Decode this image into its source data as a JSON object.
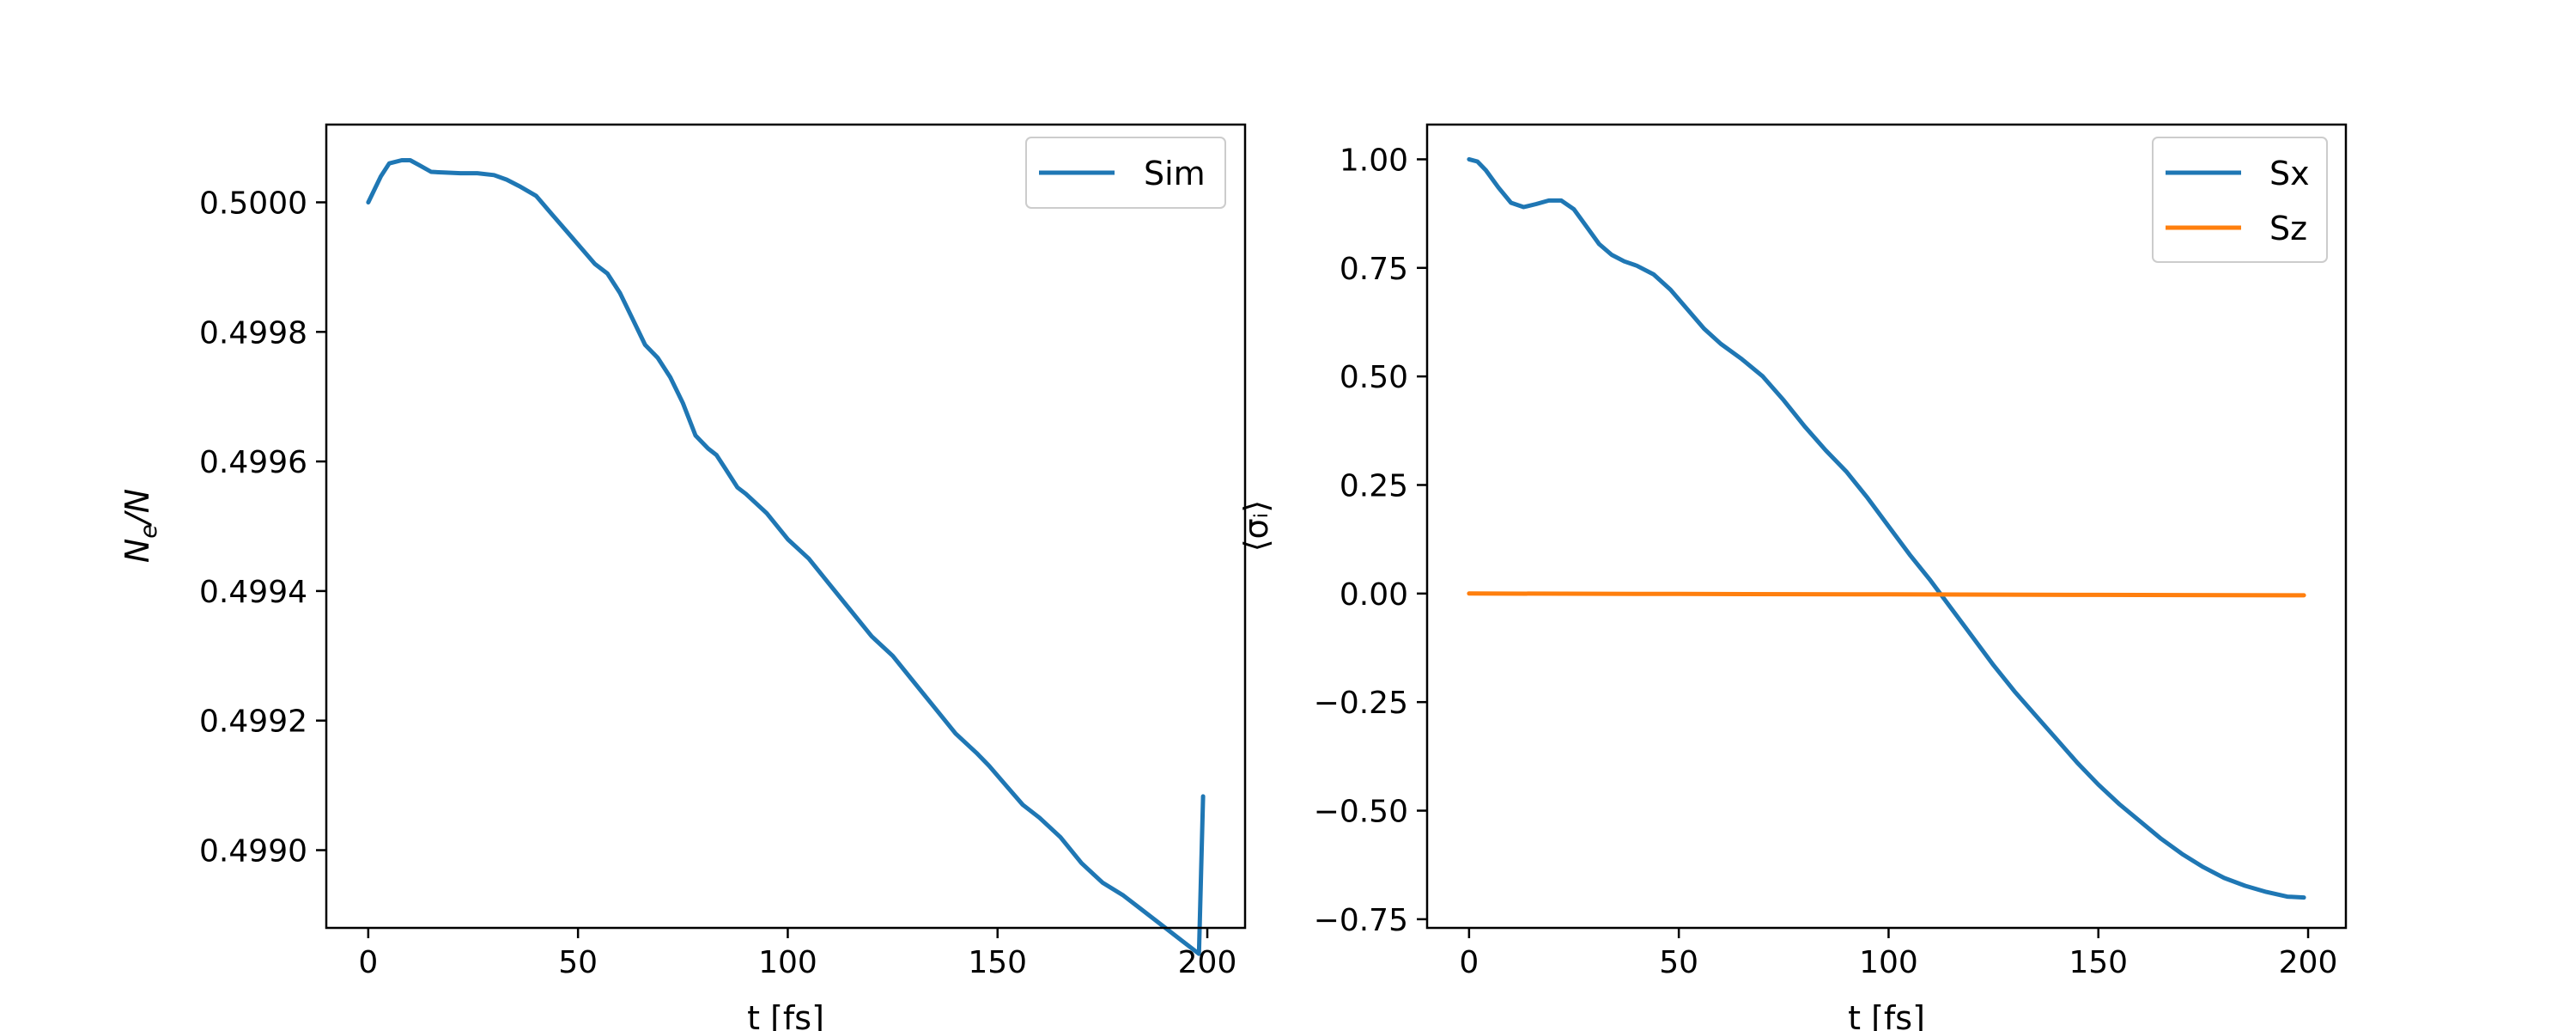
{
  "colors": {
    "blue": "#1f77b4",
    "orange": "#ff7f0e",
    "axes": "#000000",
    "background": "#ffffff",
    "legend_border": "#cccccc"
  },
  "chart_data": [
    {
      "type": "line",
      "xlabel": "t [fs]",
      "ylabel_base": "N",
      "ylabel_sub": "e",
      "ylabel_tail": "/N",
      "xlim": [
        -10,
        209
      ],
      "ylim": [
        0.49888,
        0.50012
      ],
      "xticks": [
        0,
        50,
        100,
        150,
        200
      ],
      "xtick_labels": [
        "0",
        "50",
        "100",
        "150",
        "200"
      ],
      "yticks": [
        0.499,
        0.4992,
        0.4994,
        0.4996,
        0.4998,
        0.5
      ],
      "ytick_labels": [
        "0.4990",
        "0.4992",
        "0.4994",
        "0.4996",
        "0.4998",
        "0.5000"
      ],
      "grid": false,
      "legend": "top-right",
      "series": [
        {
          "name": "Sim",
          "color": "#1f77b4",
          "x": [
            0,
            3,
            5,
            8,
            10,
            12,
            15,
            18,
            22,
            26,
            30,
            33,
            36,
            40,
            44,
            48,
            52,
            54,
            57,
            60,
            63,
            66,
            69,
            72,
            75,
            78,
            81,
            83,
            85,
            88,
            90,
            95,
            100,
            105,
            110,
            115,
            120,
            125,
            130,
            135,
            140,
            145,
            148,
            152,
            156,
            160,
            165,
            170,
            175,
            180,
            184,
            186,
            190,
            194,
            198,
            199
          ],
          "y": [
            0.5,
            0.50004,
            0.50006,
            0.500065,
            0.500065,
            0.500058,
            0.500047,
            0.500046,
            0.500045,
            0.500045,
            0.500042,
            0.500035,
            0.500025,
            0.50001,
            0.49998,
            0.49995,
            0.49992,
            0.499905,
            0.49989,
            0.49986,
            0.49982,
            0.49978,
            0.49976,
            0.49973,
            0.49969,
            0.49964,
            0.49962,
            0.49961,
            0.49959,
            0.49956,
            0.49955,
            0.49952,
            0.49948,
            0.49945,
            0.49941,
            0.49937,
            0.49933,
            0.4993,
            0.49926,
            0.49922,
            0.49918,
            0.49915,
            0.49913,
            0.4991,
            0.49907,
            0.49905,
            0.49902,
            0.49898,
            0.49895,
            0.49893,
            0.49891,
            0.4989,
            0.49888,
            0.49886,
            0.49884,
            0.499083
          ]
        }
      ]
    },
    {
      "type": "line",
      "xlabel": "t [fs]",
      "ylabel": "⟨σᵢ⟩",
      "xlim": [
        -10,
        209
      ],
      "ylim": [
        -0.77,
        1.08
      ],
      "xticks": [
        0,
        50,
        100,
        150,
        200
      ],
      "xtick_labels": [
        "0",
        "50",
        "100",
        "150",
        "200"
      ],
      "yticks": [
        -0.75,
        -0.5,
        -0.25,
        0,
        0.25,
        0.5,
        0.75,
        1
      ],
      "ytick_labels": [
        "−0.75",
        "−0.50",
        "−0.25",
        "0.00",
        "0.25",
        "0.50",
        "0.75",
        "1.00"
      ],
      "grid": false,
      "legend": "top-right",
      "series": [
        {
          "name": "Sx",
          "color": "#1f77b4",
          "x": [
            0,
            2,
            4,
            7,
            10,
            13,
            16,
            19,
            22,
            25,
            28,
            31,
            34,
            37,
            40,
            44,
            48,
            52,
            56,
            60,
            65,
            70,
            75,
            80,
            85,
            90,
            95,
            100,
            105,
            110,
            115,
            120,
            125,
            130,
            135,
            140,
            145,
            150,
            155,
            160,
            165,
            170,
            175,
            180,
            185,
            190,
            195,
            199
          ],
          "y": [
            1.0,
            0.995,
            0.975,
            0.935,
            0.9,
            0.89,
            0.897,
            0.905,
            0.905,
            0.885,
            0.845,
            0.805,
            0.78,
            0.765,
            0.755,
            0.735,
            0.7,
            0.655,
            0.61,
            0.575,
            0.54,
            0.5,
            0.445,
            0.385,
            0.33,
            0.28,
            0.22,
            0.155,
            0.09,
            0.03,
            -0.035,
            -0.1,
            -0.165,
            -0.225,
            -0.28,
            -0.335,
            -0.39,
            -0.44,
            -0.485,
            -0.525,
            -0.565,
            -0.6,
            -0.63,
            -0.655,
            -0.673,
            -0.687,
            -0.698,
            -0.7
          ]
        },
        {
          "name": "Sz",
          "color": "#ff7f0e",
          "x": [
            0,
            50,
            100,
            150,
            199
          ],
          "y": [
            0.0,
            -0.001,
            -0.002,
            -0.003,
            -0.004
          ]
        }
      ]
    }
  ]
}
